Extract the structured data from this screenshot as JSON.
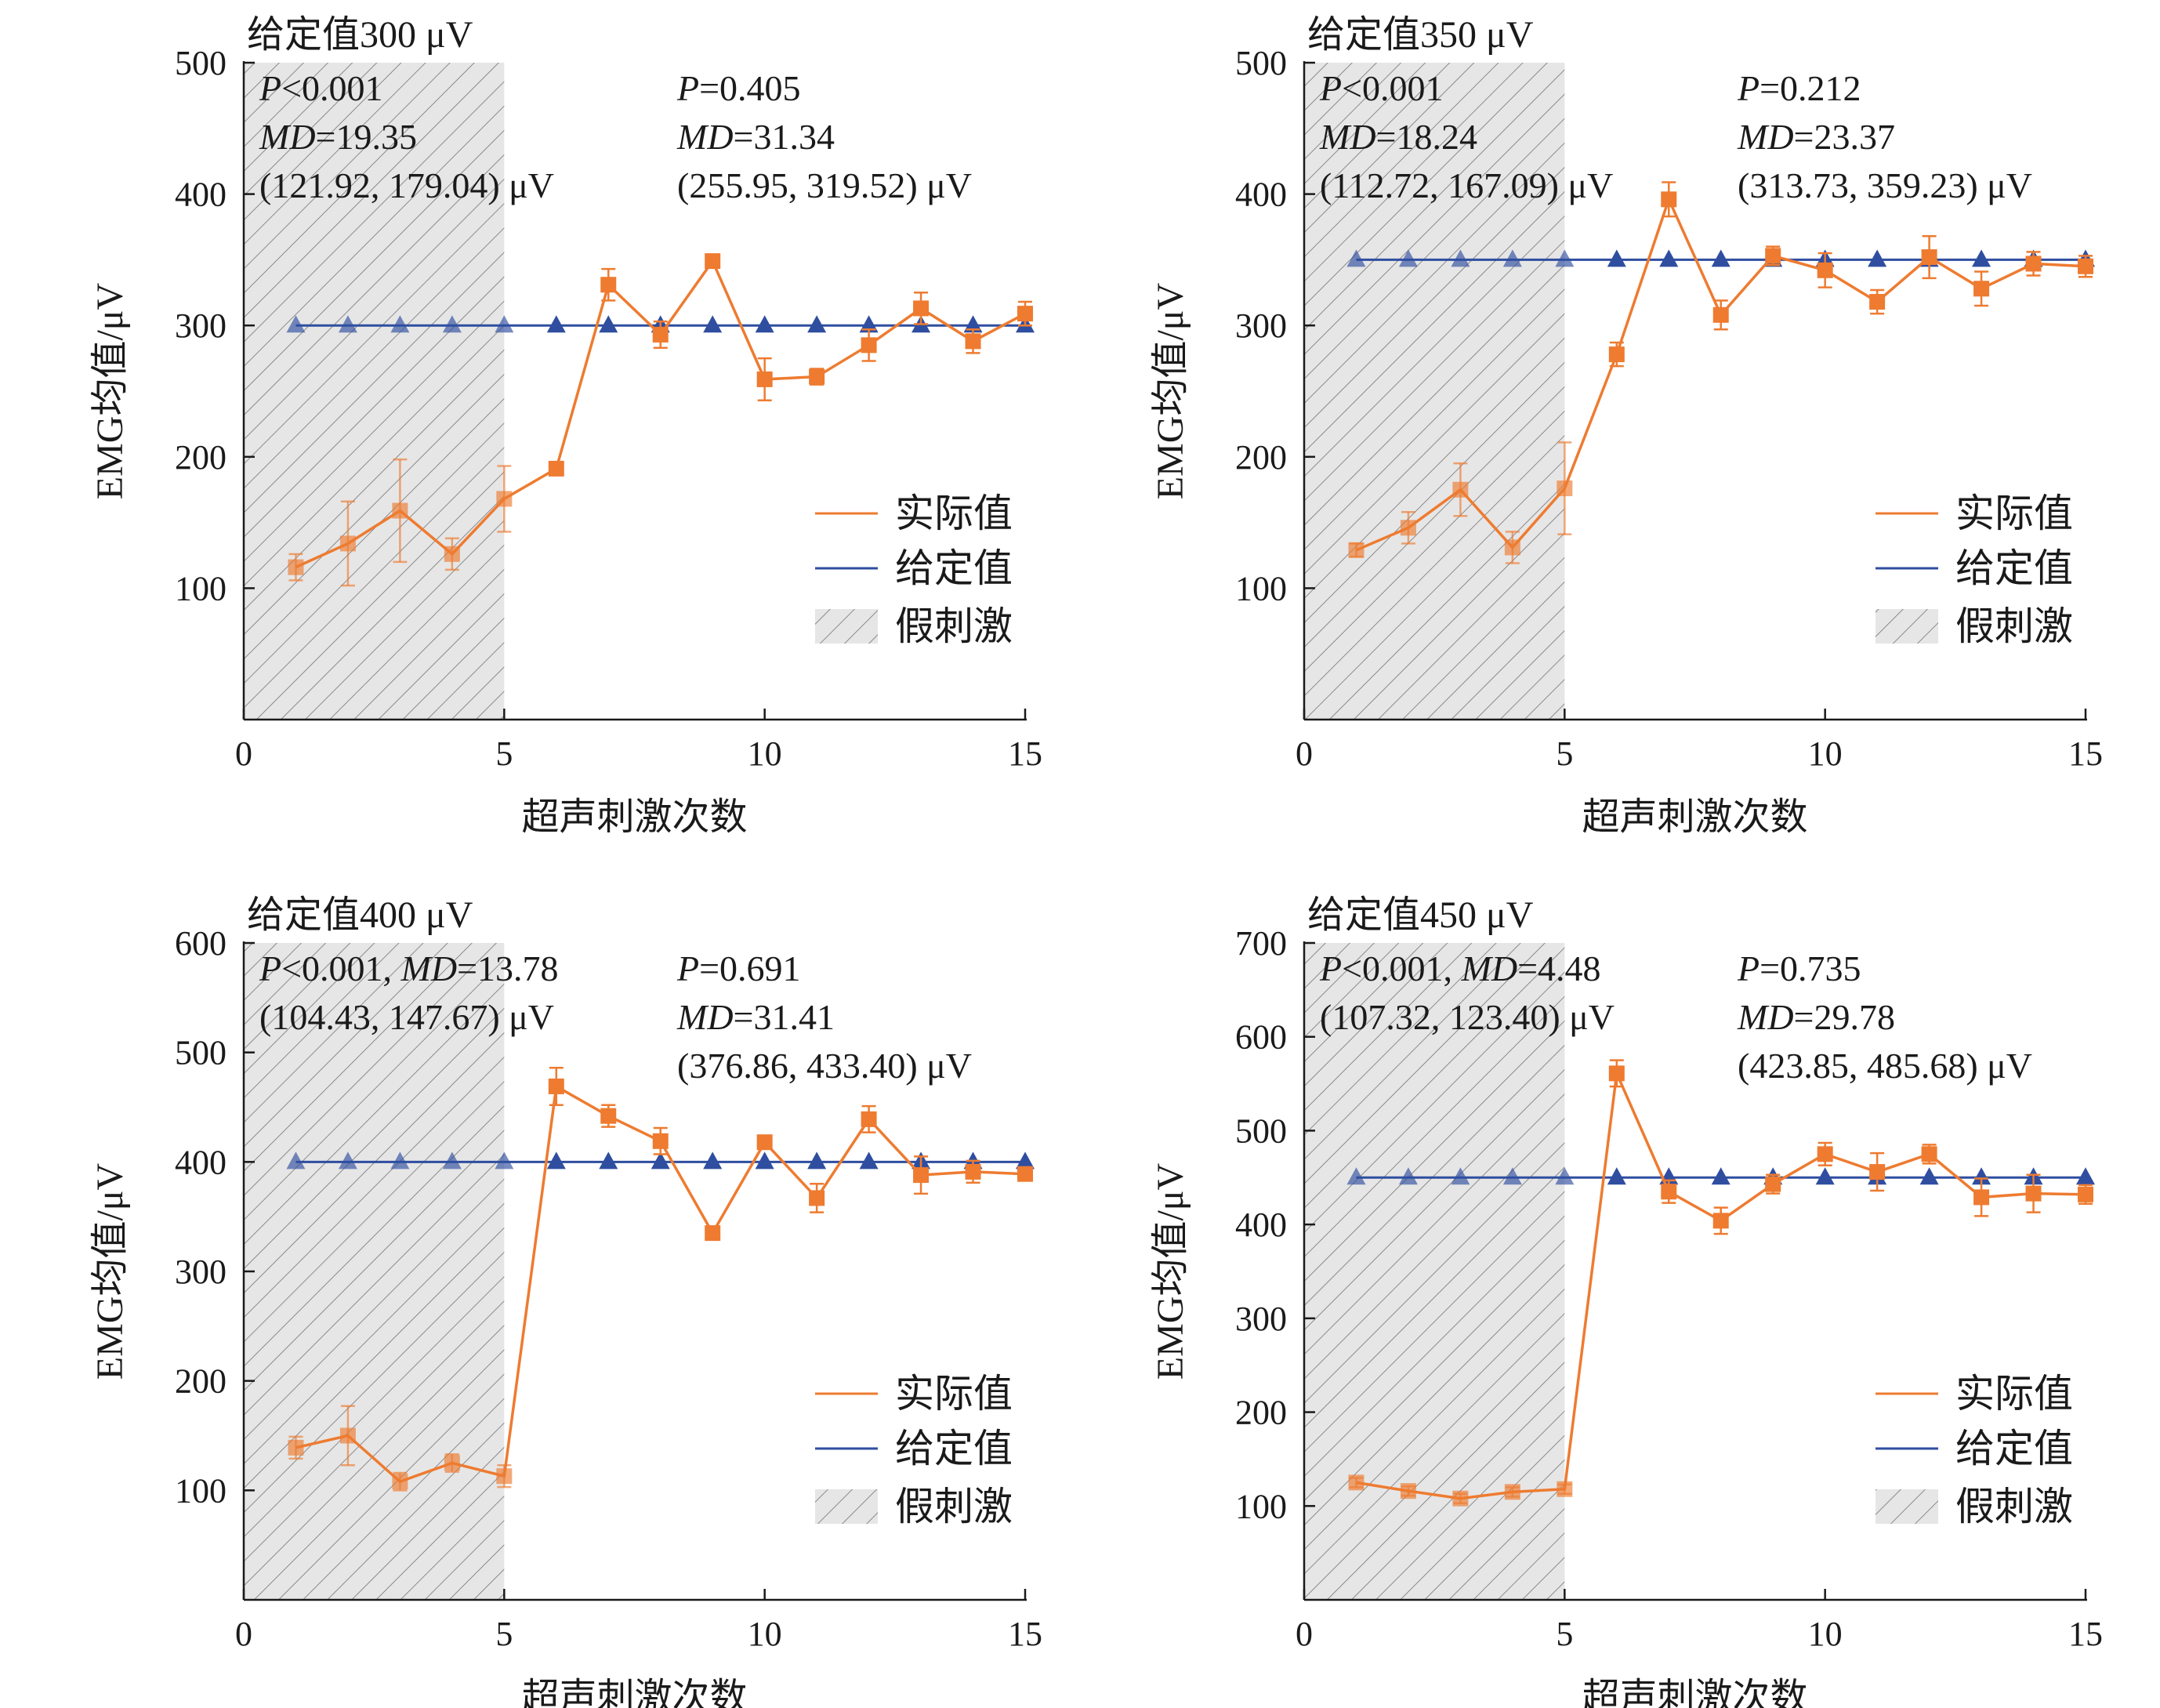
{
  "chart_data": [
    {
      "type": "line",
      "title": "给定值300 μV",
      "xlabel": "超声刺激次数",
      "ylabel": "EMG均值/μV",
      "xlim": [
        0,
        15
      ],
      "ylim": [
        0,
        500
      ],
      "xticks": [
        0,
        5,
        10,
        15
      ],
      "yticks": [
        100,
        200,
        300,
        400,
        500
      ],
      "sham_range": [
        0,
        5
      ],
      "x": [
        1,
        2,
        3,
        4,
        5,
        6,
        7,
        8,
        9,
        10,
        11,
        12,
        13,
        14,
        15
      ],
      "series": [
        {
          "name": "实际值",
          "color": "#ee7b30",
          "marker": "square",
          "values": [
            116,
            134,
            159,
            126,
            168,
            191,
            331,
            293,
            349,
            259,
            261,
            285,
            313,
            288,
            309
          ],
          "errors": [
            10,
            32,
            39,
            12,
            25,
            5,
            12,
            10,
            5,
            16,
            6,
            12,
            12,
            9,
            9
          ]
        },
        {
          "name": "给定值",
          "color": "#2f4ea0",
          "marker": "triangle",
          "values": [
            300,
            300,
            300,
            300,
            300,
            300,
            300,
            300,
            300,
            300,
            300,
            300,
            300,
            300,
            300
          ]
        }
      ],
      "legend": {
        "position": "bottom-right",
        "items": [
          "实际值",
          "给定值",
          "假刺激"
        ]
      },
      "annotations": {
        "left": [
          "P<0.001",
          "MD=19.35",
          "(121.92, 179.04) μV"
        ],
        "right": [
          "P=0.405",
          "MD=31.34",
          "(255.95, 319.52) μV"
        ]
      }
    },
    {
      "type": "line",
      "title": "给定值350 μV",
      "xlabel": "超声刺激次数",
      "ylabel": "EMG均值/μV",
      "xlim": [
        0,
        15
      ],
      "ylim": [
        0,
        500
      ],
      "xticks": [
        0,
        5,
        10,
        15
      ],
      "yticks": [
        100,
        200,
        300,
        400,
        500
      ],
      "sham_range": [
        0,
        5
      ],
      "x": [
        1,
        2,
        3,
        4,
        5,
        6,
        7,
        8,
        9,
        10,
        11,
        12,
        13,
        14,
        15
      ],
      "series": [
        {
          "name": "实际值",
          "color": "#ee7b30",
          "marker": "square",
          "values": [
            129,
            146,
            175,
            131,
            176,
            278,
            396,
            308,
            353,
            342,
            318,
            352,
            328,
            347,
            345
          ],
          "errors": [
            5,
            12,
            20,
            12,
            35,
            9,
            13,
            11,
            7,
            13,
            9,
            16,
            13,
            9,
            8
          ]
        },
        {
          "name": "给定值",
          "color": "#2f4ea0",
          "marker": "triangle",
          "values": [
            350,
            350,
            350,
            350,
            350,
            350,
            350,
            350,
            350,
            350,
            350,
            350,
            350,
            350,
            350
          ]
        }
      ],
      "legend": {
        "position": "bottom-right",
        "items": [
          "实际值",
          "给定值",
          "假刺激"
        ]
      },
      "annotations": {
        "left": [
          "P<0.001",
          "MD=18.24",
          "(112.72, 167.09) μV"
        ],
        "right": [
          "P=0.212",
          "MD=23.37",
          "(313.73, 359.23) μV"
        ]
      }
    },
    {
      "type": "line",
      "title": "给定值400 μV",
      "xlabel": "超声刺激次数",
      "ylabel": "EMG均值/μV",
      "xlim": [
        0,
        15
      ],
      "ylim": [
        0,
        600
      ],
      "xticks": [
        0,
        5,
        10,
        15
      ],
      "yticks": [
        100,
        200,
        300,
        400,
        500,
        600
      ],
      "sham_range": [
        0,
        5
      ],
      "x": [
        1,
        2,
        3,
        4,
        5,
        6,
        7,
        8,
        9,
        10,
        11,
        12,
        13,
        14,
        15
      ],
      "series": [
        {
          "name": "实际值",
          "color": "#ee7b30",
          "marker": "square",
          "values": [
            139,
            150,
            108,
            125,
            113,
            469,
            442,
            419,
            335,
            418,
            367,
            439,
            388,
            391,
            389
          ],
          "errors": [
            10,
            27,
            8,
            8,
            10,
            17,
            10,
            12,
            5,
            5,
            13,
            12,
            17,
            10,
            6
          ]
        },
        {
          "name": "给定值",
          "color": "#2f4ea0",
          "marker": "triangle",
          "values": [
            400,
            400,
            400,
            400,
            400,
            400,
            400,
            400,
            400,
            400,
            400,
            400,
            400,
            400,
            400
          ]
        }
      ],
      "legend": {
        "position": "bottom-right",
        "items": [
          "实际值",
          "给定值",
          "假刺激"
        ]
      },
      "annotations": {
        "left": [
          "P<0.001, MD=13.78",
          "(104.43, 147.67) μV"
        ],
        "right": [
          "P=0.691",
          "MD=31.41",
          "(376.86, 433.40) μV"
        ]
      }
    },
    {
      "type": "line",
      "title": "给定值450 μV",
      "xlabel": "超声刺激次数",
      "ylabel": "EMG均值/μV",
      "xlim": [
        0,
        15
      ],
      "ylim": [
        0,
        700
      ],
      "xticks": [
        0,
        5,
        10,
        15
      ],
      "yticks": [
        100,
        200,
        300,
        400,
        500,
        600,
        700
      ],
      "sham_range": [
        0,
        5
      ],
      "x": [
        1,
        2,
        3,
        4,
        5,
        6,
        7,
        8,
        9,
        10,
        11,
        12,
        13,
        14,
        15
      ],
      "series": [
        {
          "name": "实际值",
          "color": "#ee7b30",
          "marker": "square",
          "values": [
            125,
            116,
            108,
            115,
            118,
            561,
            435,
            404,
            443,
            475,
            456,
            475,
            429,
            433,
            432
          ],
          "errors": [
            5,
            5,
            5,
            5,
            5,
            14,
            12,
            14,
            10,
            12,
            20,
            10,
            20,
            20,
            10
          ]
        },
        {
          "name": "给定值",
          "color": "#2f4ea0",
          "marker": "triangle",
          "values": [
            450,
            450,
            450,
            450,
            450,
            450,
            450,
            450,
            450,
            450,
            450,
            450,
            450,
            450,
            450
          ]
        }
      ],
      "legend": {
        "position": "bottom-right",
        "items": [
          "实际值",
          "给定值",
          "假刺激"
        ]
      },
      "annotations": {
        "left": [
          "P<0.001, MD=4.48",
          "(107.32, 123.40) μV"
        ],
        "right": [
          "P=0.735",
          "MD=29.78",
          "(423.85, 485.68) μV"
        ]
      }
    }
  ]
}
